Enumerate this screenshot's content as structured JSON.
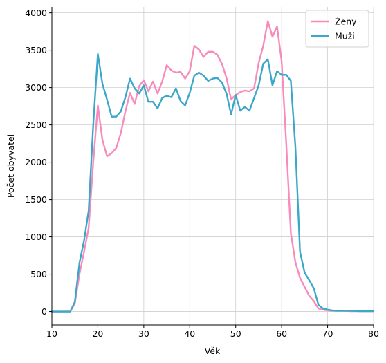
{
  "chart_data": {
    "type": "line",
    "title": "",
    "xlabel": "Věk",
    "ylabel": "Počet obyvatel",
    "xlim": [
      10,
      80
    ],
    "ylim": [
      -180,
      4080
    ],
    "xticks": [
      10,
      20,
      30,
      40,
      50,
      60,
      70,
      80
    ],
    "yticks": [
      0,
      500,
      1000,
      1500,
      2000,
      2500,
      3000,
      3500,
      4000
    ],
    "grid": true,
    "legend_position": "top-right",
    "x": [
      10,
      11,
      12,
      13,
      14,
      15,
      16,
      17,
      18,
      19,
      20,
      21,
      22,
      23,
      24,
      25,
      26,
      27,
      28,
      29,
      30,
      31,
      32,
      33,
      34,
      35,
      36,
      37,
      38,
      39,
      40,
      41,
      42,
      43,
      44,
      45,
      46,
      47,
      48,
      49,
      50,
      51,
      52,
      53,
      54,
      55,
      56,
      57,
      58,
      59,
      60,
      61,
      62,
      63,
      64,
      65,
      66,
      67,
      68,
      69,
      70,
      71,
      72,
      73,
      74,
      75,
      76,
      77,
      78,
      79,
      80
    ],
    "series": [
      {
        "name": "Ženy",
        "color": "#f78bbb",
        "values": [
          0,
          0,
          0,
          0,
          0,
          110,
          500,
          800,
          1120,
          2000,
          2760,
          2300,
          2080,
          2120,
          2190,
          2390,
          2680,
          2930,
          2780,
          3020,
          3100,
          2950,
          3080,
          2920,
          3080,
          3300,
          3230,
          3200,
          3210,
          3120,
          3220,
          3560,
          3510,
          3410,
          3480,
          3480,
          3440,
          3320,
          3130,
          2840,
          2900,
          2940,
          2960,
          2950,
          2990,
          3330,
          3560,
          3890,
          3680,
          3820,
          3350,
          2250,
          1050,
          660,
          450,
          330,
          210,
          140,
          40,
          25,
          15,
          10,
          10,
          10,
          8,
          5,
          5,
          5,
          5,
          5,
          5
        ]
      },
      {
        "name": "Muži",
        "color": "#3ba7c9",
        "values": [
          0,
          0,
          0,
          0,
          0,
          130,
          650,
          950,
          1350,
          2500,
          3450,
          3050,
          2840,
          2610,
          2610,
          2680,
          2870,
          3120,
          2990,
          2920,
          3030,
          2810,
          2810,
          2720,
          2860,
          2890,
          2870,
          2990,
          2820,
          2760,
          2930,
          3160,
          3200,
          3160,
          3090,
          3120,
          3130,
          3070,
          2920,
          2640,
          2900,
          2690,
          2740,
          2690,
          2860,
          3030,
          3320,
          3380,
          3030,
          3220,
          3170,
          3170,
          3090,
          2200,
          800,
          520,
          420,
          310,
          90,
          40,
          25,
          15,
          10,
          10,
          10,
          10,
          8,
          5,
          5,
          5,
          5
        ]
      }
    ]
  }
}
